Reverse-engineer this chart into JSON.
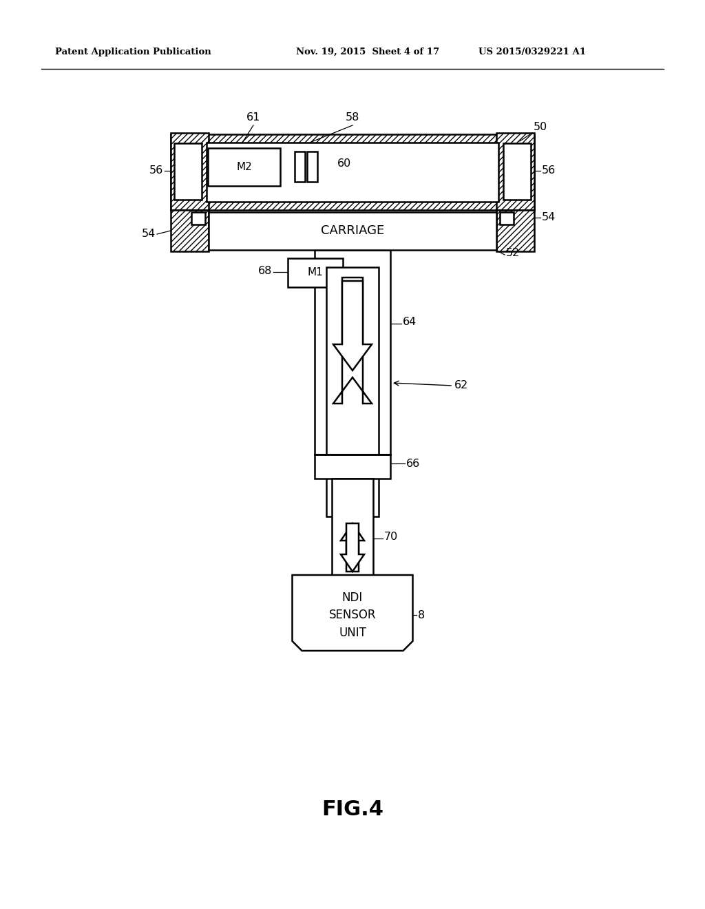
{
  "bg_color": "#ffffff",
  "line_color": "#000000",
  "header_left": "Patent Application Publication",
  "header_mid": "Nov. 19, 2015  Sheet 4 of 17",
  "header_right": "US 2015/0329221 A1",
  "figure_label": "FIG.4"
}
